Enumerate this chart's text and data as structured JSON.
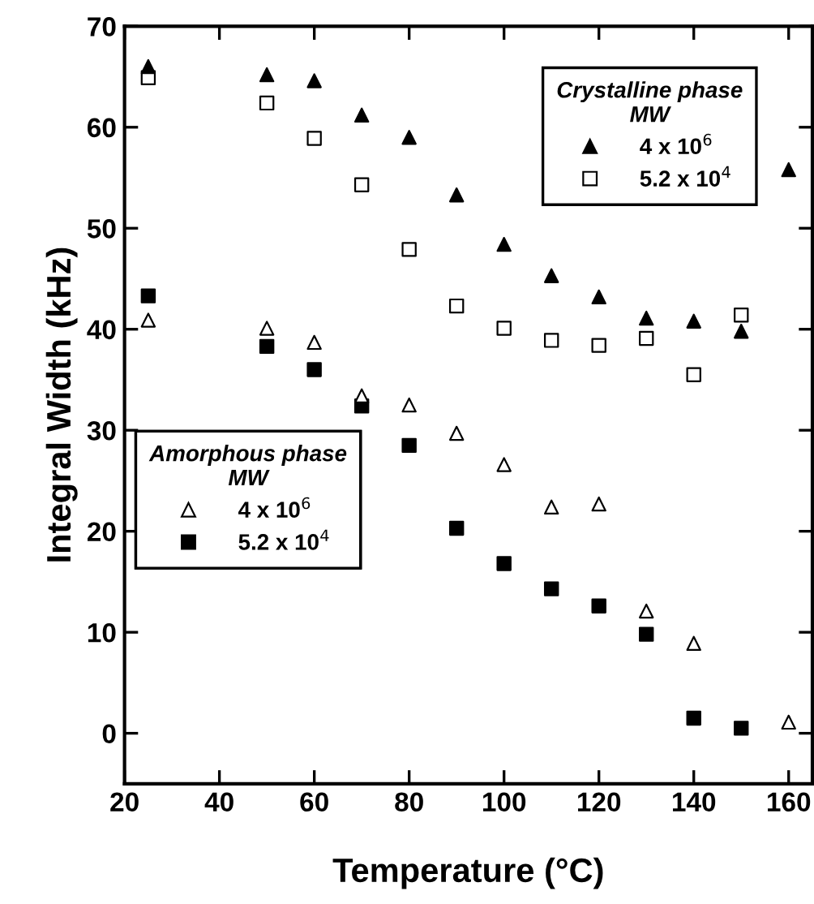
{
  "chart_data": {
    "type": "scatter",
    "xlabel": "Temperature (°C)",
    "ylabel": "Integral Width (kHz)",
    "x": [
      25,
      50,
      60,
      70,
      80,
      90,
      100,
      110,
      120,
      130,
      140,
      150,
      160
    ],
    "xlim": [
      20,
      165
    ],
    "xticks": [
      20,
      40,
      60,
      80,
      100,
      120,
      140,
      160
    ],
    "ylim": [
      -5,
      70
    ],
    "yticks": [
      0,
      10,
      20,
      30,
      40,
      50,
      60,
      70
    ],
    "grid": false,
    "legend": [
      "top right",
      "center left"
    ],
    "legend_title": [
      "Crystalline phase\nMW",
      "Amorphous phase\nMW"
    ],
    "series": [
      {
        "name": "4 x 10$^{6}$",
        "marker": "triangle",
        "color": "#000000",
        "values": [
          66,
          65.2,
          64.6,
          61.2,
          59.0,
          53.3,
          48.4,
          45.3,
          43.2,
          41.1,
          40.8,
          39.8,
          55.8
        ]
      },
      {
        "name": "5.2 x 10$^{4}$",
        "marker": "square",
        "color": "#ffffff",
        "values": [
          64.9,
          62.4,
          58.9,
          54.3,
          47.9,
          42.3,
          40.1,
          38.9,
          38.4,
          39.1,
          35.5,
          41.4,
          null
        ]
      },
      {
        "name": "4 x 10$^{6}$",
        "marker": "triangle",
        "color": "#ffffff",
        "values": [
          40.9,
          40.1,
          38.7,
          33.4,
          32.5,
          29.7,
          26.6,
          22.4,
          22.7,
          12.1,
          8.9,
          null,
          1.1
        ]
      },
      {
        "name": "5.2 x 10$^{4}$",
        "marker": "square",
        "color": "#000000",
        "values": [
          43.3,
          38.3,
          36.0,
          32.4,
          28.5,
          20.3,
          16.8,
          14.3,
          12.6,
          9.8,
          1.5,
          0.5,
          null
        ]
      }
    ]
  }
}
